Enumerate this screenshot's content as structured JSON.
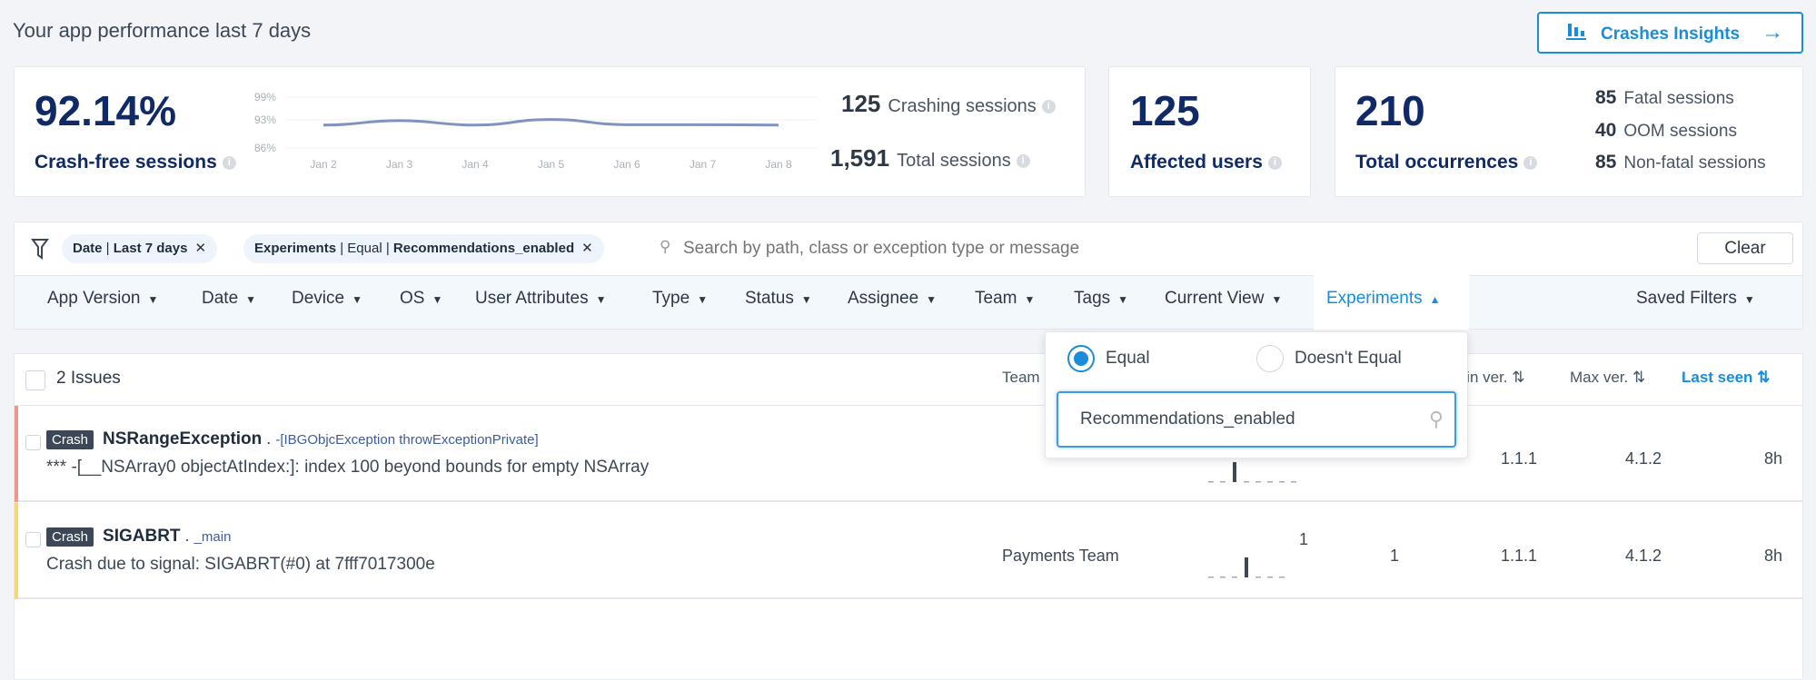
{
  "header": {
    "title": "Your app performance last 7 days",
    "insights_button": "Crashes Insights",
    "insights_icon": "bar-chart-icon",
    "arrow_icon": "arrow-right-icon"
  },
  "crash_free": {
    "value": "92.14%",
    "label": "Crash-free sessions",
    "crashing_value": "125",
    "crashing_label": "Crashing sessions",
    "total_value": "1,591",
    "total_label": "Total sessions"
  },
  "chart_data": {
    "type": "line",
    "categories": [
      "Jan 2",
      "Jan 3",
      "Jan 4",
      "Jan 5",
      "Jan 6",
      "Jan 7",
      "Jan 8"
    ],
    "values": [
      91.7,
      92.8,
      91.7,
      93.1,
      91.8,
      91.8,
      91.7
    ],
    "y_ticks": [
      "99%",
      "93%",
      "86%"
    ],
    "y_tick_values": [
      99,
      93,
      86
    ],
    "grid": true,
    "color": "#8193bd"
  },
  "affected": {
    "value": "125",
    "label": "Affected users"
  },
  "occurrences": {
    "value": "210",
    "label": "Total occurrences",
    "breakdown": [
      {
        "value": "85",
        "label": "Fatal sessions"
      },
      {
        "value": "40",
        "label": "OOM sessions"
      },
      {
        "value": "85",
        "label": "Non-fatal sessions"
      }
    ]
  },
  "filters": {
    "chips": [
      {
        "key": "Date",
        "value": "Last 7 days"
      },
      {
        "key": "Experiments",
        "op": "Equal",
        "value": "Recommendations_enabled"
      }
    ],
    "search_placeholder": "Search by path, class or exception type or message",
    "clear": "Clear",
    "tabs": [
      "App Version",
      "Date",
      "Device",
      "OS",
      "User Attributes",
      "Type",
      "Status",
      "Assignee",
      "Team",
      "Tags",
      "Current View"
    ],
    "active_tab": "Experiments",
    "saved": "Saved Filters"
  },
  "dropdown": {
    "options": [
      "Equal",
      "Doesn't Equal"
    ],
    "selected": "Equal",
    "search_value": "Recommendations_enabled"
  },
  "table": {
    "count": "2 Issues",
    "headers": {
      "team": "Team",
      "min": "Min ver.",
      "max": "Max ver.",
      "last": "Last seen"
    },
    "rows": [
      {
        "type": "Crash",
        "title": "NSRangeException",
        "sep": ".",
        "location": "-[IBGObjcException throwExceptionPrivate]",
        "message": "*** -[__NSArray0 objectAtIndex:]: index 100 beyond bounds for empty NSArray",
        "team": "",
        "count": "",
        "users": "",
        "min": "1.1.1",
        "max": "4.1.2",
        "last": "8h",
        "color": "#f0968a"
      },
      {
        "type": "Crash",
        "title": "SIGABRT",
        "sep": ".",
        "location": "_main",
        "message": "Crash due to signal: SIGABRT(#0) at 7fff7017300e",
        "team": "Payments Team",
        "count": "1",
        "users": "1",
        "min": "1.1.1",
        "max": "4.1.2",
        "last": "8h",
        "color": "#f7d774"
      }
    ]
  }
}
